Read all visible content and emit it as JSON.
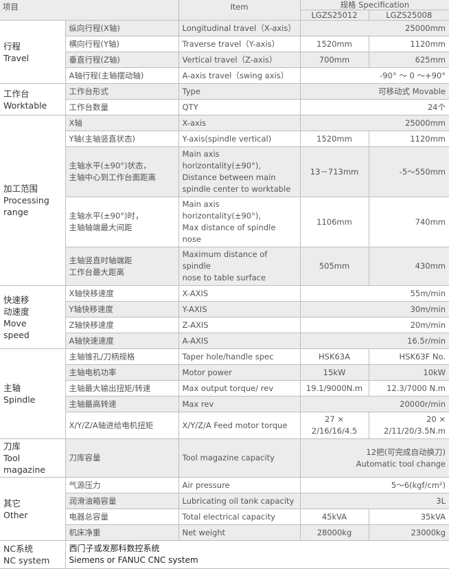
{
  "header": {
    "cn": "项目",
    "en": "Item",
    "spec": "规格 Specification",
    "model1": "LGZS25012",
    "model2": "LGZS25008"
  },
  "groups": [
    {
      "label": "行程\nTravel",
      "rows": [
        {
          "cn": "纵向行程(X轴)",
          "en": "Longitudinal travel（X-axis）",
          "v": "25000mm"
        },
        {
          "cn": "横向行程(Y轴)",
          "en": "Traverse travel（Y-axis）",
          "v1": "1520mm",
          "v2": "1120mm"
        },
        {
          "cn": "垂直行程(Z轴)",
          "en": "Vertical travel（Z-axis）",
          "v1": "700mm",
          "v2": "625mm"
        },
        {
          "cn": "A轴行程(主轴摆动轴)",
          "en": "A-axis travel（swing axis）",
          "v": "-90°  ～ 0 ～+90°"
        }
      ]
    },
    {
      "label": "工作台\nWorktable",
      "rows": [
        {
          "cn": "工作台形式",
          "en": "Type",
          "v": "可移动式  Movable"
        },
        {
          "cn": "工作台数量",
          "en": "QTY",
          "v": "24个"
        }
      ]
    },
    {
      "label": "加工范围\nProcessing\nrange",
      "rows": [
        {
          "cn": "X轴",
          "en": "X-axis",
          "v": "25000mm"
        },
        {
          "cn": "Y轴(主轴竖直状态)",
          "en": "Y-axis(spindle vertical)",
          "v1": "1520mm",
          "v2": "1120mm"
        },
        {
          "cn": "主轴水平(±90°)状态，\n主轴中心到工作台面距离",
          "en": "Main axis horizontality(±90°),\nDistance between main\nspindle center to worktable",
          "v1": "13－713mm",
          "v2": "-5～550mm"
        },
        {
          "cn": "主轴水平(±90°)时，\n主轴轴端最大间距",
          "en": "Main axis horizontality(±90°),\nMax distance of spindle nose",
          "v1": "1106mm",
          "v2": "740mm"
        },
        {
          "cn": "主轴竖直时轴端距\n工作台最大距离",
          "en": "Maximum distance of spindle\nnose to table surface",
          "v1": "505mm",
          "v2": "430mm"
        }
      ]
    },
    {
      "label": "快速移\n动速度\nMove\nspeed",
      "rows": [
        {
          "cn": "X轴快移速度",
          "en": "X-AXIS",
          "v": "55m/min"
        },
        {
          "cn": "Y轴快移速度",
          "en": "Y-AXIS",
          "v": "30m/min"
        },
        {
          "cn": "Z轴快移速度",
          "en": "Z-AXIS",
          "v": "20m/min"
        },
        {
          "cn": "A轴快速速度",
          "en": "A-AXIS",
          "v": "16.5r/min"
        }
      ]
    },
    {
      "label": "主轴\nSpindle",
      "rows": [
        {
          "cn": "主轴锥孔/刀柄规格",
          "en": "Taper hole/handle spec",
          "v1": "HSK63A",
          "v2": "HSK63F No."
        },
        {
          "cn": "主轴电机功率",
          "en": "Motor power",
          "v1": "15kW",
          "v2": "10kW"
        },
        {
          "cn": "主轴最大输出扭矩/转速",
          "en": "Max output torque/ rev",
          "v1": "19.1/9000N.m",
          "v2": "12.3/7000 N.m"
        },
        {
          "cn": "主轴最高转速",
          "en": "Max rev",
          "v": "20000r/min"
        },
        {
          "cn": "X/Y/Z/A轴进给电机扭矩",
          "en": "X/Y/Z/A Feed motor torque",
          "v1": "27 × 2/16/16/4.5",
          "v2": "20 × 2/11/20/3.5N.m"
        }
      ]
    },
    {
      "label": "刀库\nTool\nmagazine",
      "rows": [
        {
          "cn": "刀库容量",
          "en": "Tool magazine capacity",
          "v": "12把(可完成自动换刀)\nAutomatic tool change",
          "tall": true
        }
      ]
    },
    {
      "label": "其它\nOther",
      "rows": [
        {
          "cn": "气源压力",
          "en": "Air pressure",
          "v": "5～6(kgf/cm²)"
        },
        {
          "cn": "润滑油箱容量",
          "en": "Lubricating oil tank capacity",
          "v": "3L"
        },
        {
          "cn": "电器总容量",
          "en": "Total electrical capacity",
          "v1": "45kVA",
          "v2": "35kVA"
        },
        {
          "cn": "机床净重",
          "en": "Net weight",
          "v1": "28000kg",
          "v2": "23000kg"
        }
      ]
    }
  ],
  "nc": {
    "label": "NC系统\nNC system",
    "value": "西门子或发那科数控系统\nSiemens or FANUC CNC system"
  }
}
